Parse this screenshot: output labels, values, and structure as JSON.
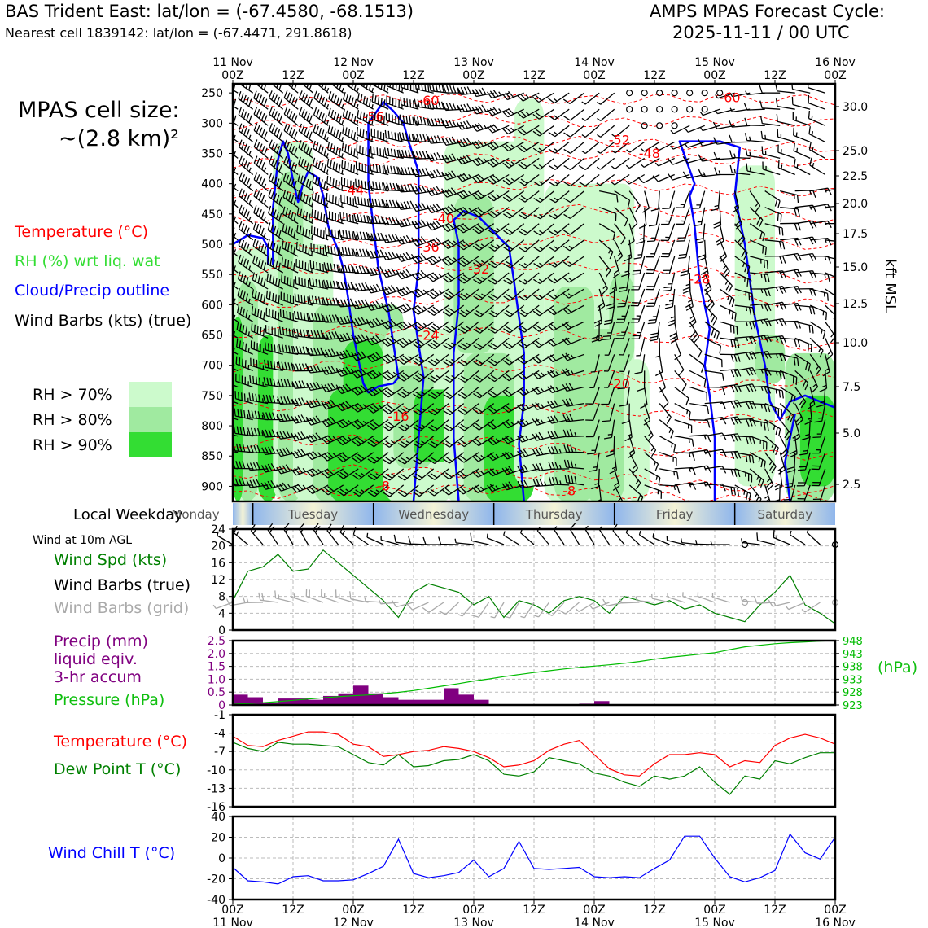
{
  "header": {
    "station": "BAS Trident East: lat/lon = (-67.4580, -68.1513)",
    "nearest": "Nearest cell 1839142: lat/lon = (-67.4471, 291.8618)",
    "model": "AMPS MPAS Forecast Cycle:",
    "cycle": "2025-11-11 / 00 UTC"
  },
  "cell_size": {
    "line1": "MPAS cell size:",
    "line2": "~(2.8 km)²"
  },
  "legend": {
    "temperature": "Temperature (°C)",
    "rh": "RH (%) wrt liq. wat",
    "cloud": "Cloud/Precip outline",
    "barbs": "Wind Barbs (kts) (true)",
    "rh70": "RH > 70%",
    "rh80": "RH > 80%",
    "rh90": "RH > 90%"
  },
  "colors": {
    "temperature": "#ff0000",
    "rh_label": "#33dd33",
    "cloud": "#0000ff",
    "rh70": "#ccfacc",
    "rh80": "#a0eaa0",
    "rh90": "#33dd33",
    "wind_speed": "#008000",
    "wind_grid": "#aaaaaa",
    "precip": "#800080",
    "pressure": "#00bb00",
    "dew_point": "#008000",
    "wind_chill": "#0000ff"
  },
  "top_axis": {
    "ticks": [
      "00Z",
      "12Z",
      "00Z",
      "12Z",
      "00Z",
      "12Z",
      "00Z",
      "12Z",
      "00Z",
      "12Z",
      "00Z"
    ],
    "dates": [
      "11 Nov",
      "12 Nov",
      "13 Nov",
      "14 Nov",
      "15 Nov",
      "16 Nov"
    ]
  },
  "bottom_axis": {
    "ticks": [
      "00Z",
      "12Z",
      "00Z",
      "12Z",
      "00Z",
      "12Z",
      "00Z",
      "12Z",
      "00Z",
      "12Z",
      "00Z"
    ],
    "dates": [
      "11 Nov",
      "12 Nov",
      "13 Nov",
      "14 Nov",
      "15 Nov",
      "16 Nov"
    ]
  },
  "weekday": {
    "label": "Local Weekday",
    "days": [
      "Monday",
      "Tuesday",
      "Wednesday",
      "Thursday",
      "Friday",
      "Saturday"
    ]
  },
  "wind10_note": "Wind at 10m AGL",
  "panel_labels": {
    "wind_spd": "Wind Spd (kts)",
    "wind_barbs_true": "Wind Barbs (true)",
    "wind_barbs_grid": "Wind Barbs (grid)",
    "precip1": "Precip (mm)",
    "precip2": "liquid eqiv.",
    "precip3": "3-hr accum",
    "pressure": "Pressure (hPa)",
    "temperature": "Temperature (°C)",
    "dew_point": "Dew Point T (°C)",
    "wind_chill": "Wind Chill T (°C)",
    "hpa_unit": "(hPa)",
    "kft": "kft MSL"
  },
  "chart_data": [
    {
      "type": "contour",
      "title": "Time-height cross section",
      "x": {
        "start": "2025-11-11 00Z",
        "end": "2025-11-16 00Z",
        "step_hours": 3
      },
      "y_left_hPa": {
        "ticks": [
          250,
          300,
          350,
          400,
          450,
          500,
          550,
          600,
          650,
          700,
          750,
          800,
          850,
          900
        ],
        "range": [
          235,
          925
        ]
      },
      "y_right_kft": {
        "ticks": [
          "30.0",
          "25.0",
          "22.5",
          "20.0",
          "17.5",
          "15.0",
          "12.5",
          "10.0",
          "7.5",
          "5.0",
          "2.5"
        ]
      },
      "temperature_contour_labels": [
        {
          "text": "-60",
          "t": 39,
          "p": 262
        },
        {
          "text": "-56",
          "t": 28,
          "p": 289
        },
        {
          "text": "-60",
          "t": 99,
          "p": 257
        },
        {
          "text": "-52",
          "t": 77,
          "p": 327
        },
        {
          "text": "-48",
          "t": 83,
          "p": 349
        },
        {
          "text": "-44",
          "t": 24,
          "p": 410
        },
        {
          "text": "-40",
          "t": 42,
          "p": 457
        },
        {
          "text": "-36",
          "t": 39,
          "p": 504
        },
        {
          "text": "-32",
          "t": 49,
          "p": 540
        },
        {
          "text": "-28",
          "t": 93,
          "p": 557
        },
        {
          "text": "-24",
          "t": 39,
          "p": 650
        },
        {
          "text": "-20",
          "t": 77,
          "p": 730
        },
        {
          "text": "-16",
          "t": 33,
          "p": 784
        },
        {
          "text": "-1",
          "t": 120,
          "p": 849
        },
        {
          "text": "-8",
          "t": 30,
          "p": 899
        },
        {
          "text": "-8",
          "t": 67,
          "p": 907
        }
      ]
    },
    {
      "type": "line",
      "name": "10m wind speed",
      "ylabel": "",
      "ylim": [
        0,
        24
      ],
      "yticks": [
        0,
        4,
        8,
        12,
        16,
        20,
        24
      ],
      "x_hours": [
        0,
        3,
        6,
        9,
        12,
        15,
        18,
        21,
        24,
        27,
        30,
        33,
        36,
        39,
        42,
        45,
        48,
        51,
        54,
        57,
        60,
        63,
        66,
        69,
        72,
        75,
        78,
        81,
        84,
        87,
        90,
        93,
        96,
        99,
        102,
        105,
        108,
        111,
        114,
        117,
        120
      ],
      "series": [
        {
          "name": "Wind Spd (kts)",
          "values": [
            7,
            14,
            15,
            18,
            14,
            14.5,
            19,
            16,
            13,
            10,
            7,
            3,
            9,
            11,
            10,
            9,
            6,
            8,
            3,
            7,
            6,
            4,
            7,
            8,
            7,
            4,
            8,
            7,
            6,
            7,
            5,
            6,
            4,
            3,
            2,
            6,
            9,
            13,
            6,
            4,
            1.5
          ]
        }
      ]
    },
    {
      "type": "bar+line",
      "name": "precip and pressure",
      "ylim_precip": [
        0,
        2.5
      ],
      "yticks_precip": [
        "0",
        "0.5",
        "1.0",
        "1.5",
        "2.0",
        "2.5"
      ],
      "yticks_pressure": [
        "923",
        "928",
        "933",
        "938",
        "943",
        "948"
      ],
      "precip_mm": [
        0.4,
        0.3,
        0.1,
        0.25,
        0.25,
        0.2,
        0.35,
        0.45,
        0.75,
        0.45,
        0.3,
        0.2,
        0.2,
        0.2,
        0.65,
        0.4,
        0.2,
        0,
        0,
        0,
        0,
        0,
        0,
        0.05,
        0.15,
        0,
        0,
        0,
        0,
        0,
        0,
        0,
        0,
        0,
        0,
        0,
        0,
        0,
        0,
        0
      ],
      "pressure_hPa": [
        923.3,
        923.6,
        923.9,
        924.3,
        924.8,
        925.3,
        925.8,
        926.2,
        926.6,
        926.9,
        927.4,
        927.9,
        928.6,
        929.5,
        930.4,
        931.3,
        932.3,
        933.1,
        934,
        934.8,
        935.6,
        936.3,
        937,
        937.6,
        938.1,
        938.6,
        939.2,
        939.9,
        940.8,
        941.5,
        942.1,
        942.7,
        943.3,
        944.5,
        945.6,
        946.2,
        946.8,
        947.2,
        947.5,
        947.8,
        948
      ]
    },
    {
      "type": "line",
      "name": "temperature and dew point",
      "ylim": [
        -16,
        -1
      ],
      "yticks": [
        -16,
        -13,
        -10,
        -7,
        -4,
        -1
      ],
      "series": [
        {
          "name": "Temperature (°C)",
          "values": [
            -4.5,
            -6,
            -6.2,
            -5.2,
            -4.5,
            -3.8,
            -3.8,
            -4.2,
            -5.8,
            -6.2,
            -7.8,
            -7.5,
            -7,
            -6.8,
            -6.2,
            -6.5,
            -7,
            -8,
            -9.5,
            -9.2,
            -8.5,
            -6.8,
            -5.8,
            -5.2,
            -7.5,
            -9.8,
            -10.8,
            -11,
            -9,
            -7.5,
            -7.5,
            -7.2,
            -7.5,
            -9.5,
            -8.5,
            -8.8,
            -6,
            -4.8,
            -4.2,
            -4.8,
            -5.8
          ]
        },
        {
          "name": "Dew Point T (°C)",
          "values": [
            -5.5,
            -6.5,
            -7,
            -5.5,
            -5.8,
            -5.8,
            -6,
            -6.2,
            -7.5,
            -8.8,
            -9.2,
            -7.5,
            -9.5,
            -9.3,
            -8.5,
            -8.3,
            -7.5,
            -8.5,
            -10.7,
            -11,
            -10.3,
            -8,
            -8.5,
            -9,
            -10.5,
            -11,
            -12,
            -12.7,
            -11,
            -11.5,
            -11,
            -9.5,
            -12,
            -14,
            -11,
            -11.5,
            -8.5,
            -9,
            -8,
            -7.2,
            -7.2
          ]
        }
      ]
    },
    {
      "type": "line",
      "name": "wind chill",
      "ylim": [
        -40,
        40
      ],
      "yticks": [
        -40,
        -20,
        0,
        20,
        40
      ],
      "series": [
        {
          "name": "Wind Chill T (°C)",
          "values": [
            -9,
            -22,
            -23,
            -25,
            -18,
            -17,
            -22,
            -22,
            -21,
            -15,
            -8,
            18,
            -15,
            -19,
            -17,
            -14,
            -2,
            -18,
            -10,
            16,
            -10,
            -11,
            -10,
            -9,
            -18,
            -19,
            -18,
            -19,
            -10,
            -2,
            21,
            21,
            0,
            -18,
            -23,
            -19,
            -12,
            23,
            5,
            -1,
            20
          ]
        }
      ]
    }
  ]
}
